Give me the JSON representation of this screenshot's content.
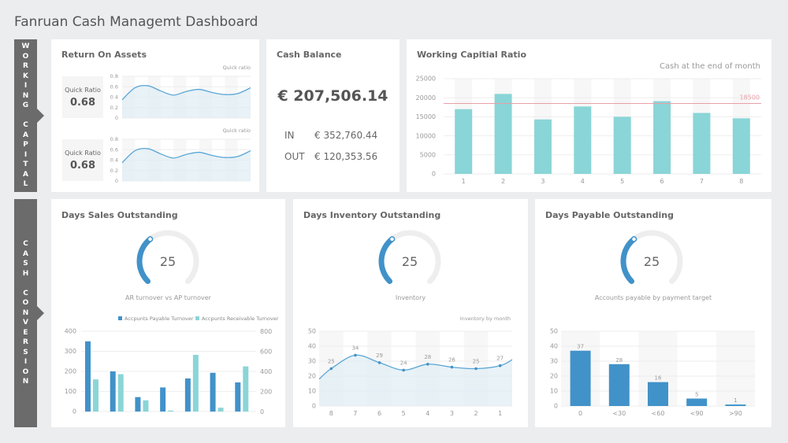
{
  "header": {
    "title": "Fanruan Cash Managemt Dashboard"
  },
  "side_labels": {
    "working_capital": [
      "W",
      "O",
      "R",
      "K",
      "I",
      "N",
      "G",
      "",
      "C",
      "A",
      "P",
      "I",
      "T",
      "A",
      "L"
    ],
    "cash_conversion": [
      "C",
      "A",
      "S",
      "H",
      "",
      "C",
      "O",
      "N",
      "V",
      "E",
      "R",
      "S",
      "I",
      "O",
      "N"
    ]
  },
  "roa": {
    "title": "Return On Assets",
    "cards": [
      {
        "label": "Quick Ratio",
        "value": "0.68",
        "legend": "Quick ratio"
      },
      {
        "label": "Quick Ratio",
        "value": "0.68",
        "legend": "Quick ratio"
      }
    ]
  },
  "cash_balance": {
    "title": "Cash Balance",
    "total": "€ 207,506.14",
    "in_label": "IN",
    "in_value": "€ 352,760.44",
    "out_label": "OUT",
    "out_value": "€ 120,353.56"
  },
  "wcr": {
    "title": "Working Capitial Ratio"
  },
  "dso": {
    "title": "Days Sales Outstanding",
    "gauge_value": 25,
    "gauge_label": "AR turnover vs AP turnover"
  },
  "dio": {
    "title": "Days Inventory Outstanding",
    "gauge_value": 25,
    "gauge_label": "Inventory"
  },
  "dpo": {
    "title": "Days Payable Outstanding",
    "gauge_value": 25,
    "gauge_label": "Accounts payable by payment target"
  },
  "colors": {
    "teal": "#8ad5d7",
    "blue": "#4192c9",
    "line": "#5aa6d6",
    "area": "#deedf3",
    "ref": "#e8a0a8",
    "gauge_track": "#eeeeee"
  },
  "chart_data": [
    {
      "type": "area",
      "legend": "Quick ratio",
      "ylim": [
        0,
        0.8
      ],
      "yticks": [
        "0",
        "0.2",
        "0.4",
        "0.6",
        "0.8"
      ],
      "values": [
        0.35,
        0.58,
        0.62,
        0.52,
        0.44,
        0.51,
        0.55,
        0.49,
        0.45,
        0.47,
        0.58
      ]
    },
    {
      "type": "area",
      "legend": "Quick ratio",
      "ylim": [
        0,
        0.8
      ],
      "yticks": [
        "0",
        "0.2",
        "0.4",
        "0.6",
        "0.8"
      ],
      "values": [
        0.35,
        0.58,
        0.62,
        0.52,
        0.44,
        0.51,
        0.55,
        0.49,
        0.45,
        0.47,
        0.58
      ]
    },
    {
      "type": "bar",
      "legend": "Cash at the end of month",
      "categories": [
        "1",
        "2",
        "3",
        "4",
        "5",
        "6",
        "7",
        "8"
      ],
      "values": [
        17000,
        21000,
        14300,
        17700,
        15000,
        19100,
        16000,
        14600
      ],
      "ylim": [
        0,
        25000
      ],
      "yticks": [
        "0",
        "5000",
        "10000",
        "15000",
        "20000",
        "25000"
      ],
      "reference_line": {
        "value": 18500,
        "label": "18500"
      }
    },
    {
      "type": "bar",
      "ylim_left": [
        0,
        400
      ],
      "ylim_right": [
        0,
        800
      ],
      "yticks_left": [
        "0",
        "100",
        "200",
        "300",
        "400"
      ],
      "yticks_right": [
        "0",
        "200",
        "400",
        "600",
        "800"
      ],
      "series": [
        {
          "name": "Accpunts Payable Turnover",
          "axis": "left",
          "values": [
            350,
            200,
            72,
            120,
            165,
            193,
            145
          ]
        },
        {
          "name": "Accpunts Receivable Turnover",
          "axis": "right",
          "values": [
            320,
            372,
            112,
            10,
            565,
            38,
            450
          ]
        }
      ]
    },
    {
      "type": "area",
      "legend": "Inventory by month",
      "categories": [
        "8",
        "7",
        "6",
        "5",
        "4",
        "3",
        "2",
        "1"
      ],
      "values": [
        25,
        34,
        29,
        24,
        28,
        26,
        25,
        27
      ],
      "labels": [
        "25",
        "34",
        "29",
        "24",
        "28",
        "26",
        "25",
        "27"
      ],
      "ylim": [
        0,
        50
      ],
      "yticks": [
        "0",
        "10",
        "20",
        "30",
        "40",
        "50"
      ]
    },
    {
      "type": "bar",
      "categories": [
        "0",
        "<30",
        "<60",
        "<90",
        ">90"
      ],
      "values": [
        37,
        28,
        16,
        5,
        1
      ],
      "labels": [
        "37",
        "28",
        "16",
        "5",
        "1"
      ],
      "ylim": [
        0,
        50
      ],
      "yticks": [
        "0",
        "10",
        "20",
        "30",
        "40",
        "50"
      ]
    }
  ]
}
